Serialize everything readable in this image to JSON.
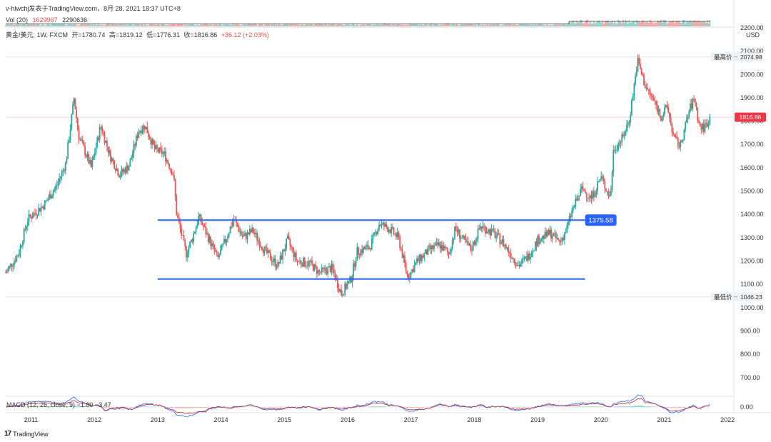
{
  "header": {
    "text": "v-hlwchj发表于TradingView.com，8月 28, 2021 18:37 UTC+8"
  },
  "volume": {
    "label": "Vol (20)",
    "value1": "1629967",
    "value2": "2290636"
  },
  "legend": {
    "symbol": "黄金/美元, 1W, FXCM",
    "open": "开=1780.74",
    "high": "高=1819.12",
    "low": "低=1776.31",
    "close": "收=1816.86",
    "change": "+36.12 (+2.03%)"
  },
  "currency": "USD",
  "macd_legend": "MACD (12, 26, close, 9)  −1.80  −3.47",
  "footer": {
    "brand": "TradingView"
  },
  "colors": {
    "up": "#26a69a",
    "down": "#ef5350",
    "level": "#2962ff",
    "price_tag": "#f23645",
    "grid": "#e9ecf1"
  },
  "chart_data": {
    "type": "candlestick",
    "symbol": "黄金/美元",
    "timeframe": "1W",
    "ylim": [
      620,
      2160
    ],
    "x_range": [
      2010.6,
      2022.1
    ],
    "y_ticks": [
      2200.0,
      2100.0,
      2000.0,
      1900.0,
      1800.0,
      1700.0,
      1600.0,
      1500.0,
      1400.0,
      1300.0,
      1200.0,
      1100.0,
      1000.0,
      900.0,
      800.0,
      700.0
    ],
    "y_tick_labels": [
      "2200.00",
      "2100.00",
      "2000.00",
      "1900.00",
      "1800.00",
      "1700.00",
      "1600.00",
      "1500.00",
      "1400.00",
      "1300.00",
      "1200.00",
      "1100.00",
      "1000.00",
      "900.00",
      "800.00",
      "700.00"
    ],
    "x_ticks": [
      2011,
      2012,
      2013,
      2014,
      2015,
      2016,
      2017,
      2018,
      2019,
      2020,
      2021,
      2022
    ],
    "x_tick_labels": [
      "2011",
      "2012",
      "2013",
      "2014",
      "2015",
      "2016",
      "2017",
      "2018",
      "2019",
      "2020",
      "2021",
      "2022"
    ],
    "price_path": [
      [
        2010.6,
        1150
      ],
      [
        2010.8,
        1230
      ],
      [
        2010.95,
        1380
      ],
      [
        2011.2,
        1440
      ],
      [
        2011.4,
        1520
      ],
      [
        2011.55,
        1620
      ],
      [
        2011.68,
        1900
      ],
      [
        2011.75,
        1740
      ],
      [
        2011.95,
        1600
      ],
      [
        2012.1,
        1780
      ],
      [
        2012.25,
        1650
      ],
      [
        2012.4,
        1570
      ],
      [
        2012.55,
        1610
      ],
      [
        2012.7,
        1760
      ],
      [
        2012.8,
        1780
      ],
      [
        2012.95,
        1680
      ],
      [
        2013.1,
        1660
      ],
      [
        2013.25,
        1570
      ],
      [
        2013.3,
        1400
      ],
      [
        2013.45,
        1230
      ],
      [
        2013.55,
        1300
      ],
      [
        2013.65,
        1390
      ],
      [
        2013.8,
        1300
      ],
      [
        2013.95,
        1210
      ],
      [
        2014.1,
        1310
      ],
      [
        2014.2,
        1380
      ],
      [
        2014.35,
        1300
      ],
      [
        2014.5,
        1330
      ],
      [
        2014.7,
        1240
      ],
      [
        2014.9,
        1180
      ],
      [
        2015.05,
        1290
      ],
      [
        2015.2,
        1200
      ],
      [
        2015.4,
        1190
      ],
      [
        2015.55,
        1150
      ],
      [
        2015.75,
        1170
      ],
      [
        2015.9,
        1060
      ],
      [
        2016.05,
        1120
      ],
      [
        2016.15,
        1240
      ],
      [
        2016.35,
        1260
      ],
      [
        2016.5,
        1360
      ],
      [
        2016.65,
        1340
      ],
      [
        2016.8,
        1300
      ],
      [
        2016.95,
        1130
      ],
      [
        2017.1,
        1200
      ],
      [
        2017.3,
        1250
      ],
      [
        2017.45,
        1270
      ],
      [
        2017.6,
        1230
      ],
      [
        2017.7,
        1340
      ],
      [
        2017.85,
        1280
      ],
      [
        2017.95,
        1250
      ],
      [
        2018.1,
        1350
      ],
      [
        2018.3,
        1320
      ],
      [
        2018.45,
        1280
      ],
      [
        2018.6,
        1220
      ],
      [
        2018.7,
        1180
      ],
      [
        2018.85,
        1220
      ],
      [
        2019.0,
        1290
      ],
      [
        2019.2,
        1320
      ],
      [
        2019.35,
        1280
      ],
      [
        2019.45,
        1330
      ],
      [
        2019.55,
        1420
      ],
      [
        2019.7,
        1510
      ],
      [
        2019.85,
        1470
      ],
      [
        2020.0,
        1560
      ],
      [
        2020.15,
        1470
      ],
      [
        2020.2,
        1680
      ],
      [
        2020.35,
        1730
      ],
      [
        2020.45,
        1810
      ],
      [
        2020.58,
        2060
      ],
      [
        2020.7,
        1950
      ],
      [
        2020.85,
        1880
      ],
      [
        2020.95,
        1820
      ],
      [
        2021.05,
        1860
      ],
      [
        2021.15,
        1730
      ],
      [
        2021.25,
        1690
      ],
      [
        2021.4,
        1850
      ],
      [
        2021.48,
        1900
      ],
      [
        2021.55,
        1780
      ],
      [
        2021.62,
        1770
      ],
      [
        2021.7,
        1800
      ],
      [
        2021.72,
        1817
      ]
    ],
    "levels": [
      {
        "value": 1375.58,
        "label": "1375.58",
        "x_start": 2013.0,
        "x_end": 2019.75
      },
      {
        "value": 1123.0,
        "label": "",
        "x_start": 2013.0,
        "x_end": 2019.75
      }
    ],
    "high_marker": {
      "label": "最高价",
      "value": "2074.98",
      "y": 2074.98
    },
    "low_marker": {
      "label": "最低价",
      "value": "1046.23",
      "y": 1046.23
    },
    "last_price": {
      "value": "1816.86",
      "y": 1816.86
    },
    "macd": {
      "zero_label": "0.00"
    }
  }
}
